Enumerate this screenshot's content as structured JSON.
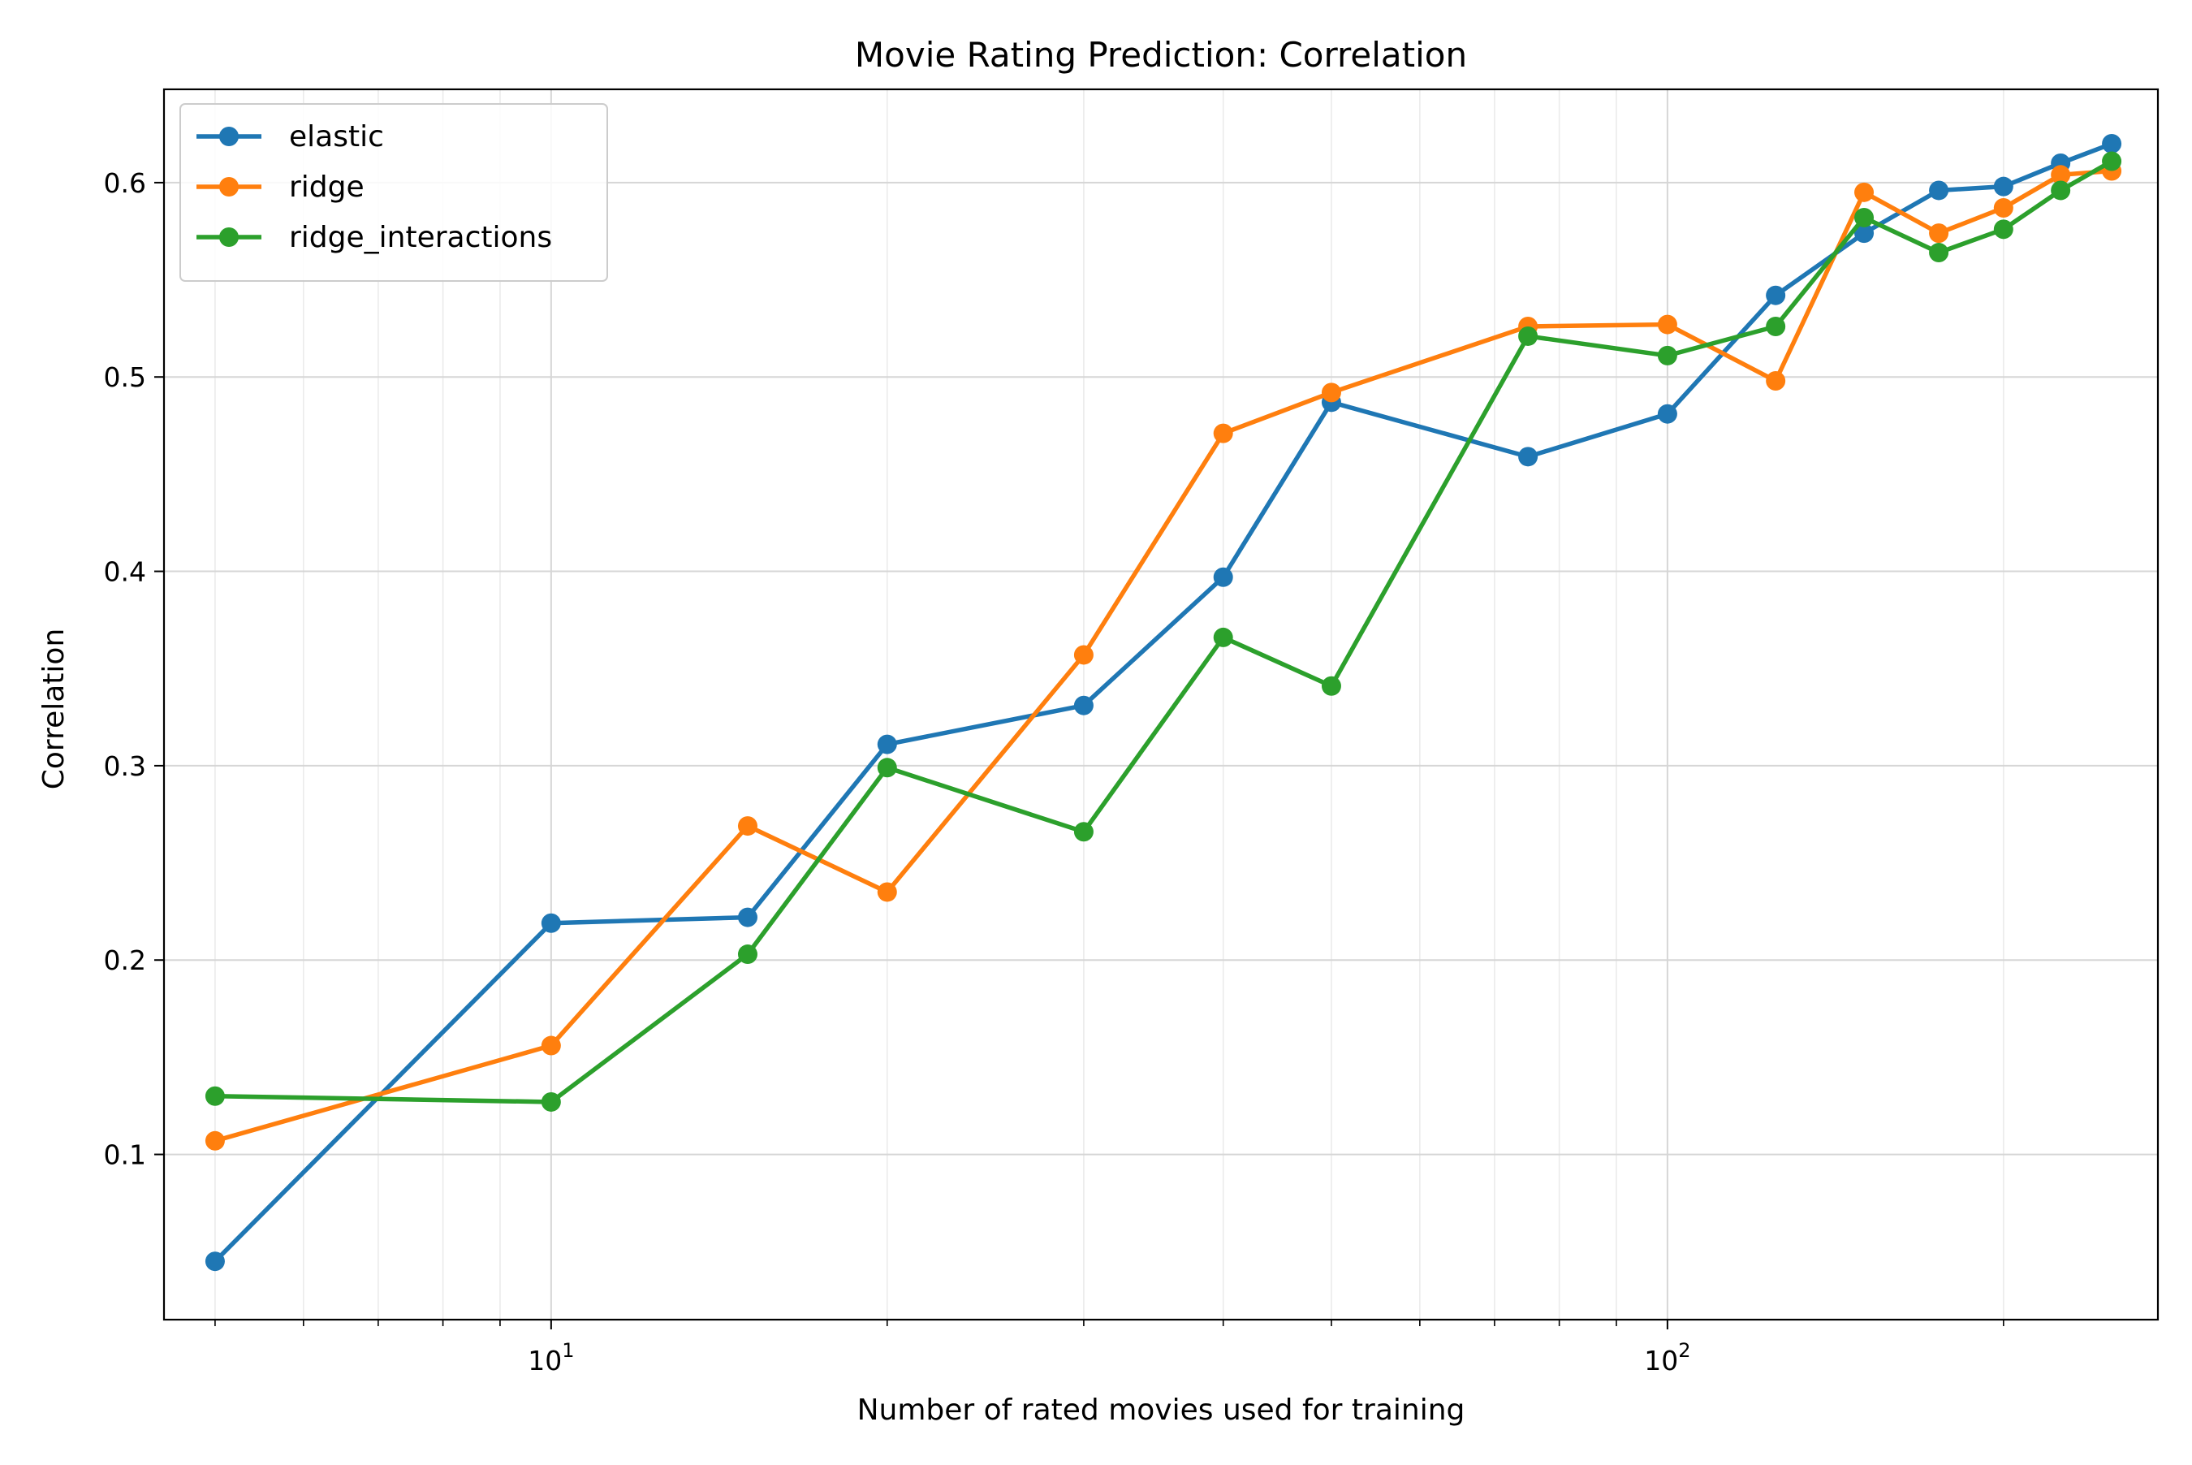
{
  "chart_data": {
    "type": "line",
    "title": "Movie Rating Prediction: Correlation",
    "xlabel": "Number of rated movies used for training",
    "ylabel": "Correlation",
    "xscale": "log",
    "xlim": [
      4.5,
      275
    ],
    "ylim": [
      0.015,
      0.648
    ],
    "x_ticks": [
      {
        "value": 10,
        "base": "10",
        "exp": "1"
      },
      {
        "value": 100,
        "base": "10",
        "exp": "2"
      }
    ],
    "y_ticks": [
      {
        "value": 0.1,
        "label": "0.1"
      },
      {
        "value": 0.2,
        "label": "0.2"
      },
      {
        "value": 0.3,
        "label": "0.3"
      },
      {
        "value": 0.4,
        "label": "0.4"
      },
      {
        "value": 0.5,
        "label": "0.5"
      },
      {
        "value": 0.6,
        "label": "0.6"
      }
    ],
    "grid": true,
    "minor_grid": true,
    "legend_position": "upper-left",
    "x": [
      5,
      10,
      15,
      20,
      30,
      40,
      50,
      75,
      100,
      125,
      150,
      175,
      200,
      225,
      250
    ],
    "series": [
      {
        "name": "elastic",
        "color": "#1f77b4",
        "values": [
          0.045,
          0.219,
          0.222,
          0.311,
          0.331,
          0.397,
          0.487,
          0.459,
          0.481,
          0.542,
          0.574,
          0.596,
          0.598,
          0.61,
          0.62
        ]
      },
      {
        "name": "ridge",
        "color": "#ff7f0e",
        "values": [
          0.107,
          0.156,
          0.269,
          0.235,
          0.357,
          0.471,
          0.492,
          0.526,
          0.527,
          0.498,
          0.595,
          0.574,
          0.587,
          0.604,
          0.606
        ]
      },
      {
        "name": "ridge_interactions",
        "color": "#2ca02c",
        "values": [
          0.13,
          0.127,
          0.203,
          0.299,
          0.266,
          0.366,
          0.341,
          0.521,
          0.511,
          0.526,
          0.582,
          0.564,
          0.576,
          0.596,
          0.611
        ]
      }
    ]
  }
}
